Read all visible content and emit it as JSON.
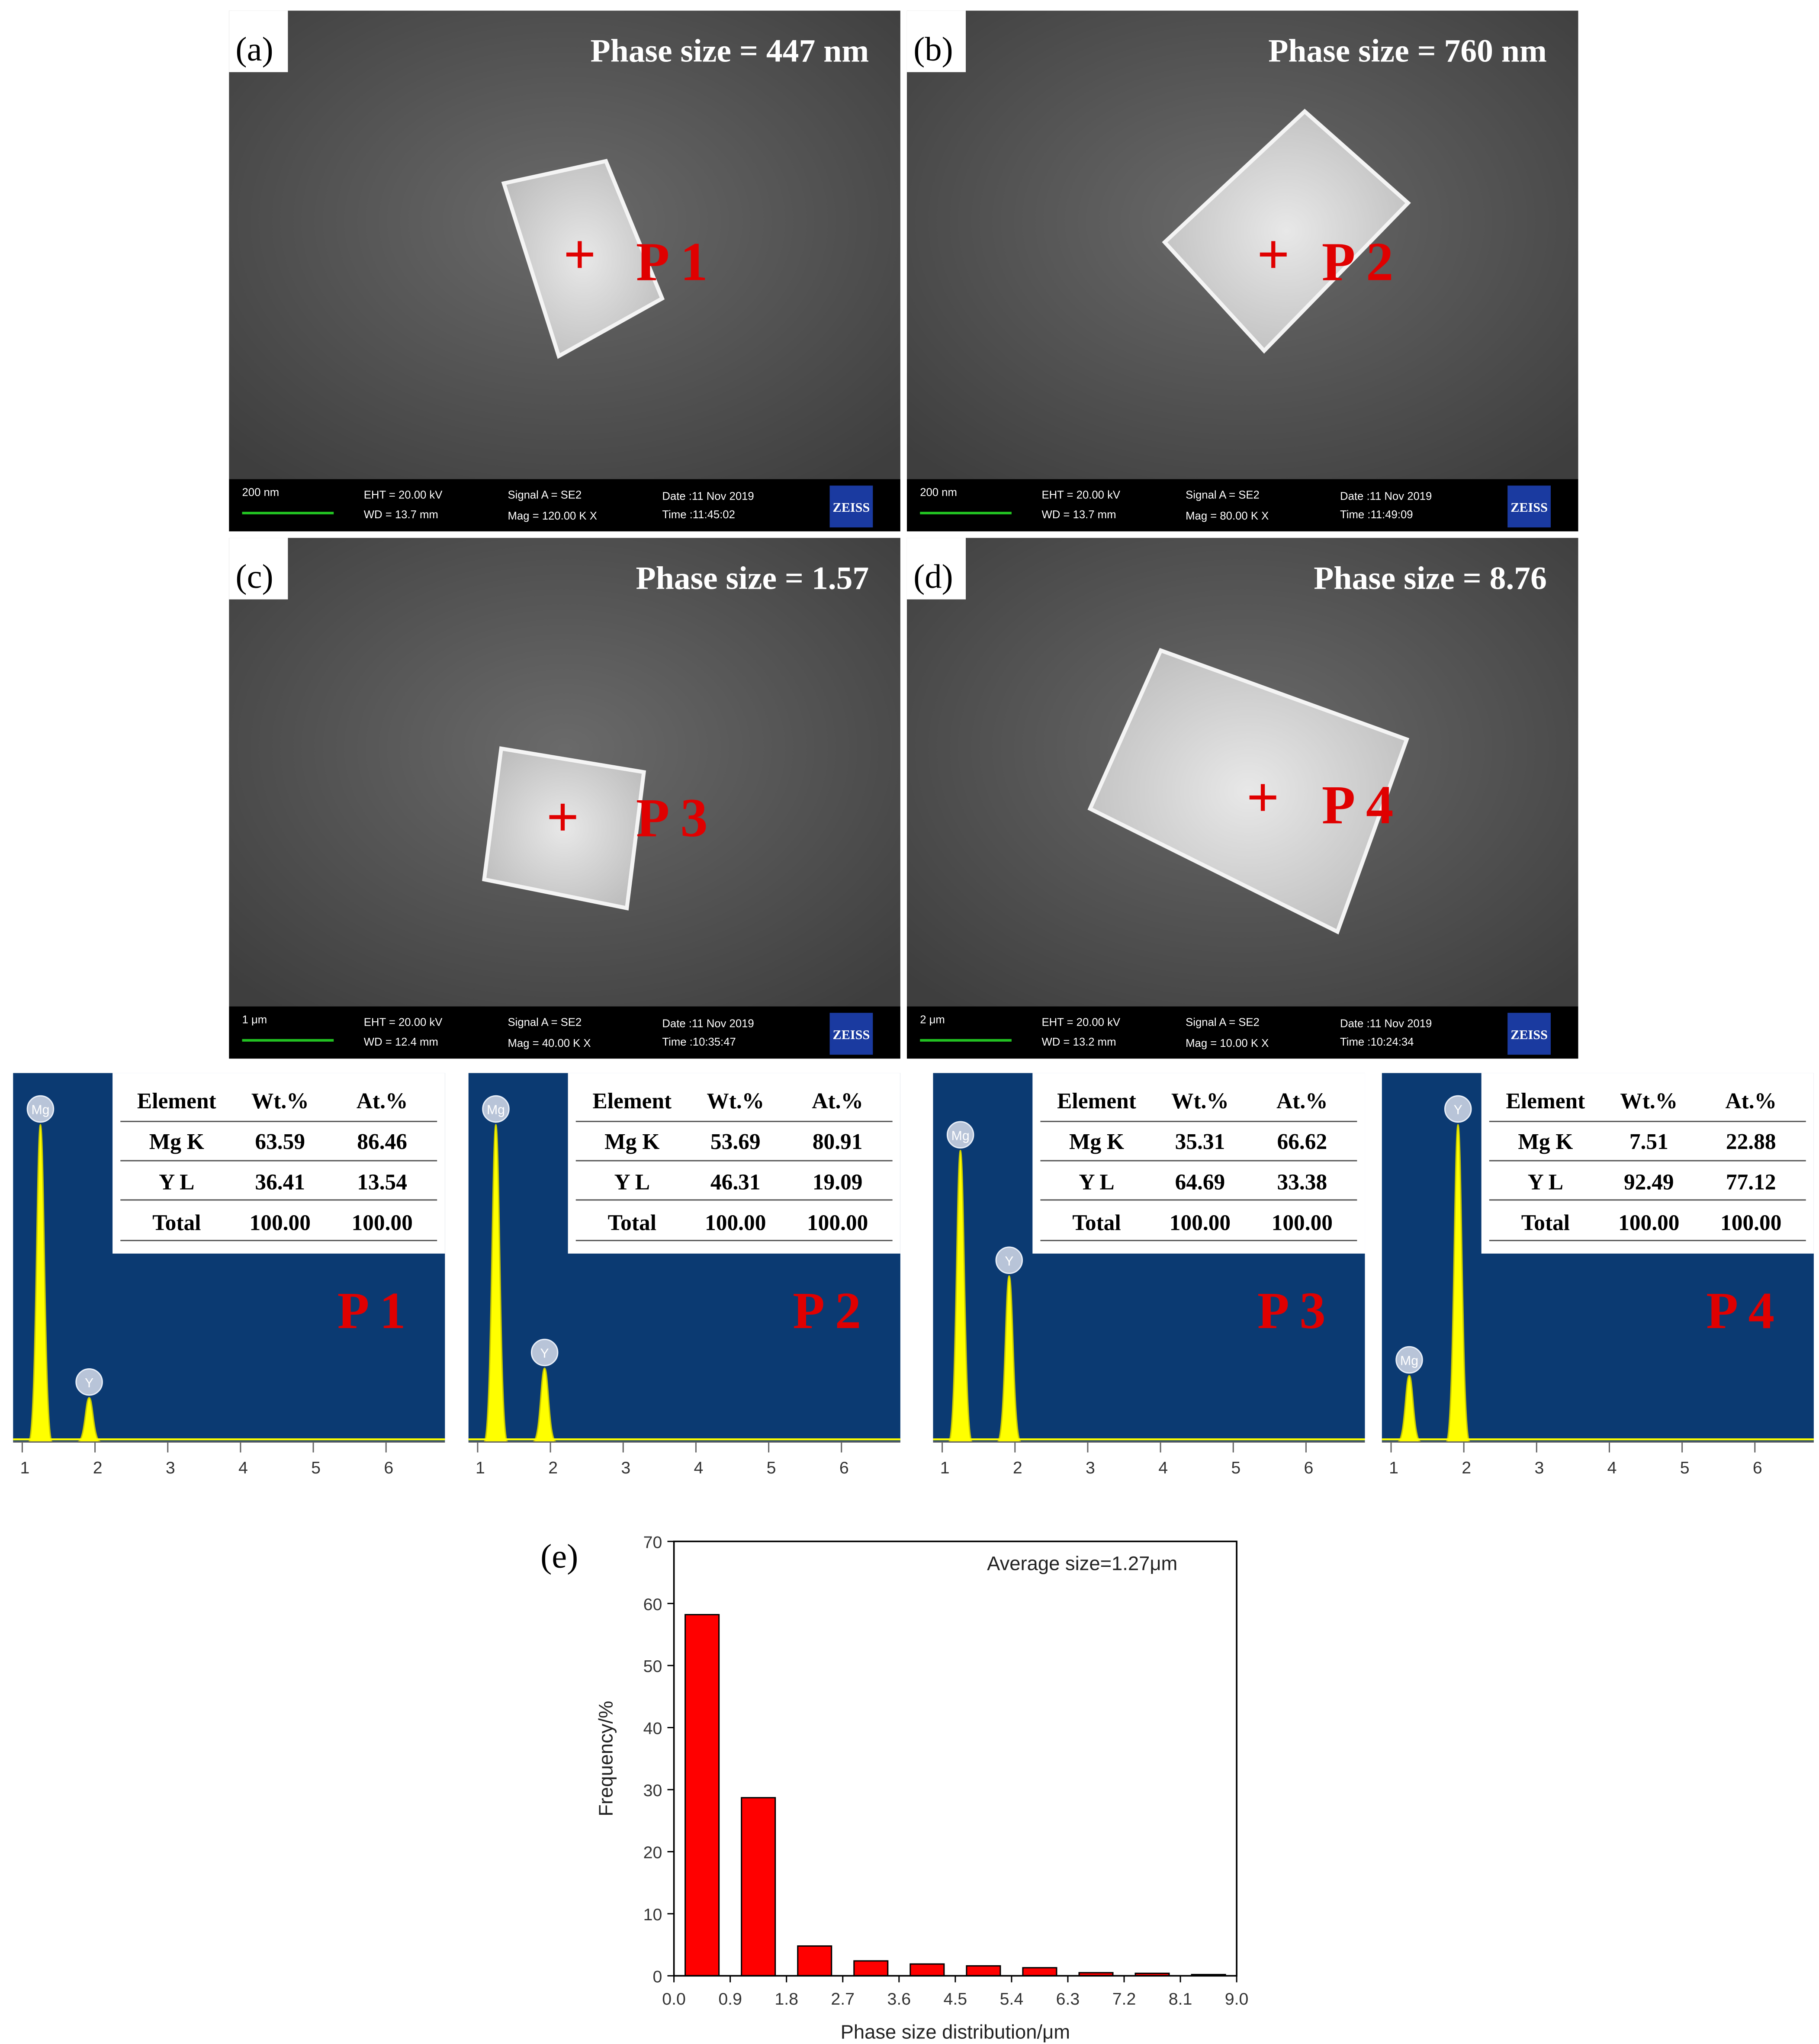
{
  "sem_panels": [
    {
      "label": "(a)",
      "phase_size": "Phase size = 447 nm",
      "point": "P 1",
      "scale_bar": "200 nm",
      "eht": "EHT = 20.00 kV",
      "wd": "WD = 13.7 mm",
      "signal": "Signal A = SE2",
      "mag": "Mag = 120.00 K X",
      "date": "Date :11 Nov 2019",
      "time": "Time :11:45:02",
      "brand": "ZEISS"
    },
    {
      "label": "(b)",
      "phase_size": "Phase size = 760 nm",
      "point": "P 2",
      "scale_bar": "200 nm",
      "eht": "EHT = 20.00 kV",
      "wd": "WD = 13.7 mm",
      "signal": "Signal A = SE2",
      "mag": "Mag = 80.00 K X",
      "date": "Date :11 Nov 2019",
      "time": "Time :11:49:09",
      "brand": "ZEISS"
    },
    {
      "label": "(c)",
      "phase_size": "Phase size = 1.57",
      "point": "P 3",
      "scale_bar": "1 μm",
      "eht": "EHT = 20.00 kV",
      "wd": "WD = 12.4 mm",
      "signal": "Signal A = SE2",
      "mag": "Mag = 40.00 K X",
      "date": "Date :11 Nov 2019",
      "time": "Time :10:35:47",
      "brand": "ZEISS"
    },
    {
      "label": "(d)",
      "phase_size": "Phase size = 8.76",
      "point": "P 4",
      "scale_bar": "2 μm",
      "eht": "EHT = 20.00 kV",
      "wd": "WD = 13.2 mm",
      "signal": "Signal A = SE2",
      "mag": "Mag = 10.00 K X",
      "date": "Date :11 Nov 2019",
      "time": "Time :10:24:34",
      "brand": "ZEISS"
    }
  ],
  "eds_panels": [
    {
      "point": "P 1",
      "header": [
        "Element",
        "Wt.%",
        "At.%"
      ],
      "rows": [
        [
          "Mg K",
          "63.59",
          "86.46"
        ],
        [
          "Y L",
          "36.41",
          "13.54"
        ],
        [
          "Total",
          "100.00",
          "100.00"
        ]
      ],
      "peaks": [
        {
          "label": "Mg",
          "energy": 1.25,
          "intensity": 0.86
        },
        {
          "label": "Y",
          "energy": 1.92,
          "intensity": 0.12
        }
      ],
      "xticks": [
        1,
        2,
        3,
        4,
        5,
        6
      ]
    },
    {
      "point": "P 2",
      "header": [
        "Element",
        "Wt.%",
        "At.%"
      ],
      "rows": [
        [
          "Mg K",
          "53.69",
          "80.91"
        ],
        [
          "Y L",
          "46.31",
          "19.09"
        ],
        [
          "Total",
          "100.00",
          "100.00"
        ]
      ],
      "peaks": [
        {
          "label": "Mg",
          "energy": 1.25,
          "intensity": 0.86
        },
        {
          "label": "Y",
          "energy": 1.92,
          "intensity": 0.2
        }
      ],
      "xticks": [
        1,
        2,
        3,
        4,
        5,
        6
      ]
    },
    {
      "point": "P 3",
      "header": [
        "Element",
        "Wt.%",
        "At.%"
      ],
      "rows": [
        [
          "Mg K",
          "35.31",
          "66.62"
        ],
        [
          "Y L",
          "64.69",
          "33.38"
        ],
        [
          "Total",
          "100.00",
          "100.00"
        ]
      ],
      "peaks": [
        {
          "label": "Mg",
          "energy": 1.25,
          "intensity": 0.79
        },
        {
          "label": "Y",
          "energy": 1.92,
          "intensity": 0.45
        }
      ],
      "xticks": [
        1,
        2,
        3,
        4,
        5,
        6
      ]
    },
    {
      "point": "P 4",
      "header": [
        "Element",
        "Wt.%",
        "At.%"
      ],
      "rows": [
        [
          "Mg K",
          "7.51",
          "22.88"
        ],
        [
          "Y L",
          "92.49",
          "77.12"
        ],
        [
          "Total",
          "100.00",
          "100.00"
        ]
      ],
      "peaks": [
        {
          "label": "Mg",
          "energy": 1.25,
          "intensity": 0.18
        },
        {
          "label": "Y",
          "energy": 1.92,
          "intensity": 0.86
        }
      ],
      "xticks": [
        1,
        2,
        3,
        4,
        5,
        6
      ]
    }
  ],
  "chart_data": {
    "type": "histogram",
    "panel_label": "(e)",
    "annotation": "Average size=1.27μm",
    "x_label": "Phase size distribution/μm",
    "y_label": "Frequency/%",
    "bins": [
      0,
      0.9,
      1.8,
      2.7,
      3.6,
      4.5,
      5.4,
      6.3,
      7.2,
      8.1,
      9
    ],
    "values": [
      58.2,
      28.7,
      4.8,
      2.4,
      1.9,
      1.6,
      1.3,
      0.5,
      0.4,
      0.2
    ],
    "color": "#ff0000",
    "xlim": [
      0,
      9
    ],
    "xticks": [
      {
        "value": 0,
        "label": "0.0"
      },
      0.9,
      1.8,
      2.7,
      3.6,
      4.5,
      5.4,
      6.3,
      7.2,
      8.1,
      {
        "value": 9,
        "label": "9.0"
      }
    ],
    "ylim": [
      0,
      70
    ],
    "yticks": [
      0,
      10,
      20,
      30,
      40,
      50,
      60,
      70
    ]
  }
}
